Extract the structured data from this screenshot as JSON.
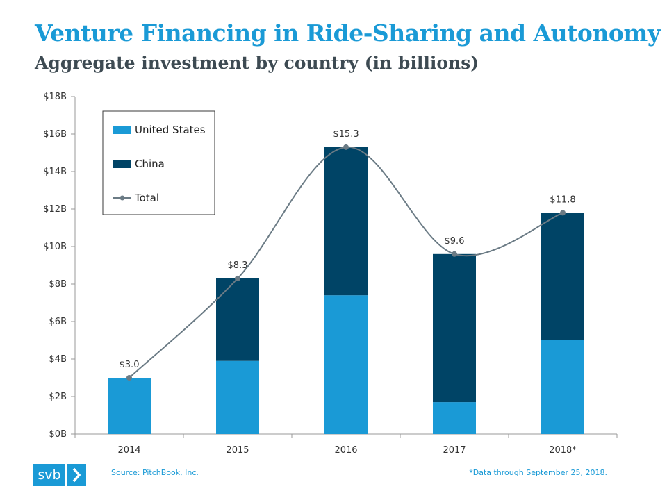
{
  "header": {
    "title": "Venture Financing in Ride-Sharing and Autonomy",
    "subtitle": "Aggregate investment by country (in billions)"
  },
  "chart_data": {
    "type": "bar",
    "stacked": true,
    "title": "Venture Financing in Ride-Sharing and Autonomy",
    "subtitle": "Aggregate investment by country (in billions)",
    "categories": [
      "2014",
      "2015",
      "2016",
      "2017",
      "2018*"
    ],
    "series": [
      {
        "name": "United States",
        "values": [
          3.0,
          3.9,
          7.4,
          1.7,
          5.0
        ],
        "color": "#1a9ad6"
      },
      {
        "name": "China",
        "values": [
          0.0,
          4.4,
          7.9,
          7.9,
          6.8
        ],
        "color": "#004466"
      }
    ],
    "line_series": {
      "name": "Total",
      "values": [
        3.0,
        8.3,
        15.3,
        9.6,
        11.8
      ],
      "color": "#6b7b85",
      "smooth": true
    },
    "data_labels": [
      "$3.0",
      "$8.3",
      "$15.3",
      "$9.6",
      "$11.8"
    ],
    "y_ticks": [
      "$0B",
      "$2B",
      "$4B",
      "$6B",
      "$8B",
      "$10B",
      "$12B",
      "$14B",
      "$16B",
      "$18B"
    ],
    "ylim": [
      0,
      18
    ],
    "xlabel": "",
    "ylabel": "",
    "grid": false,
    "legend_position": "top-left"
  },
  "footer": {
    "logo_text": "svb",
    "source": "Source: PitchBook, Inc.",
    "note": "*Data through September 25, 2018."
  }
}
